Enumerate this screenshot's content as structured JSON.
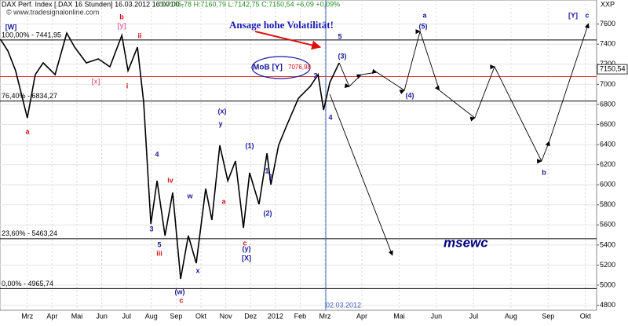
{
  "chart_data": {
    "type": "line",
    "title": "DAX Perf. Index [.DAX  16 Stunden] 16.03.2012 16:00:00 -",
    "subtitle": "O:7145,78 H:7160,79 L:7142,75 C:7150,54 +6,09 +0,09%",
    "source": "© www.tradesignalonline.com",
    "y_axis_label": "XXP",
    "xlim": [
      -1.1,
      19.3
    ],
    "ylim": [
      4750,
      7840
    ],
    "yticks": [
      4800,
      5000,
      5200,
      5400,
      5600,
      5800,
      6000,
      6200,
      6400,
      6600,
      6800,
      7000,
      7200,
      7400,
      7600
    ],
    "xticks": [
      {
        "value": 0,
        "label": "Mrz"
      },
      {
        "value": 1,
        "label": "Apr"
      },
      {
        "value": 2,
        "label": "Mai"
      },
      {
        "value": 3,
        "label": "Jun"
      },
      {
        "value": 4,
        "label": "Jul"
      },
      {
        "value": 5,
        "label": "Aug"
      },
      {
        "value": 6,
        "label": "Sep"
      },
      {
        "value": 7,
        "label": "Okt"
      },
      {
        "value": 8,
        "label": "Nov"
      },
      {
        "value": 9,
        "label": "Dez"
      },
      {
        "value": 10,
        "label": "2012"
      },
      {
        "value": 11,
        "label": "Feb"
      },
      {
        "value": 12,
        "label": "Mrz"
      },
      {
        "value": 13,
        "label": "Apr"
      },
      {
        "value": 14,
        "label": "Mai"
      },
      {
        "value": 15,
        "label": "Jun"
      },
      {
        "value": 16,
        "label": "Jul"
      },
      {
        "value": 17,
        "label": "Aug"
      },
      {
        "value": 18,
        "label": "Sep"
      },
      {
        "value": 19,
        "label": "Okt"
      }
    ],
    "grid": true,
    "series": [
      {
        "color": "#000000",
        "x": [
          -1.08,
          -0.78,
          -0.47,
          0,
          0.32,
          0.64,
          1.12,
          1.59,
          1.91,
          2.38,
          2.86,
          3.33,
          3.81,
          4.06,
          4.44,
          4.69,
          4.98,
          5.23,
          5.55,
          5.86,
          6.18,
          6.49,
          6.81,
          7.19,
          7.44,
          7.76,
          8.08,
          8.39,
          8.71,
          8.96,
          9.34,
          9.66,
          9.82,
          10.13,
          10.45,
          10.93,
          11.4,
          11.72,
          11.94,
          12.14,
          12.39
        ],
        "values": [
          7449,
          7332,
          7136,
          6666,
          7097,
          7214,
          7097,
          7511,
          7370,
          7214,
          7253,
          7175,
          7488,
          7136,
          7370,
          6823,
          5610,
          6040,
          5493,
          5923,
          5063,
          5493,
          5219,
          5962,
          5650,
          6393,
          6040,
          6236,
          5571,
          6119,
          5806,
          6314,
          6001,
          6393,
          6588,
          6862,
          6979,
          7097,
          6745,
          7019,
          7214
        ]
      },
      {
        "color": "#000000",
        "x": [
          12.39,
          12.66,
          12.98,
          13.4,
          14.14,
          14.56,
          15.08,
          16.03,
          16.56,
          17.82,
          18.03,
          19.08
        ],
        "values": [
          7214,
          6979,
          7097,
          7120,
          6940,
          7527,
          6940,
          6666,
          7175,
          6236,
          6432,
          7605
        ]
      },
      {
        "color": "#000000",
        "x": [
          12.14,
          13.82
        ],
        "values": [
          6901,
          5297
        ]
      }
    ],
    "levels": [
      {
        "value": 7441.95,
        "label": "100,00% - 7441,95"
      },
      {
        "value": 6834.27,
        "label": "76,40% - 6834,27"
      },
      {
        "value": 5463.24,
        "label": "23,60% - 5463,24"
      },
      {
        "value": 4965.74,
        "label": "0,00% - 4965,74"
      }
    ],
    "mob": {
      "label": "MoB [Y]",
      "value": 7076.98,
      "value_label": "7076,98"
    },
    "last_price": {
      "value": 7150.54,
      "label": "7150,54"
    },
    "marker": {
      "x": 12.03,
      "label": "02.03.2012"
    },
    "annotations": [
      "Ansage hohe Volatilität!",
      "msewc"
    ],
    "wave_labels": [
      {
        "text": "[W]",
        "color": "#1a1a9c"
      },
      {
        "text": "b",
        "color": "#d01010"
      },
      {
        "text": "[y]",
        "color": "#e070a0"
      },
      {
        "text": "ii",
        "color": "#d01010"
      },
      {
        "text": "a",
        "color": "#d01010"
      },
      {
        "text": "i",
        "color": "#d01010"
      },
      {
        "text": "[x]",
        "color": "#e070a0"
      },
      {
        "text": "iv",
        "color": "#d01010"
      },
      {
        "text": "iii",
        "color": "#d01010"
      },
      {
        "text": "5",
        "color": "#1a1a9c"
      },
      {
        "text": "3",
        "color": "#1a1a9c"
      },
      {
        "text": "4",
        "color": "#1a1a9c"
      },
      {
        "text": "(w)",
        "color": "#1a1a9c"
      },
      {
        "text": "c",
        "color": "#d01010"
      },
      {
        "text": "w",
        "color": "#1a1a9c"
      },
      {
        "text": "x",
        "color": "#1a1a9c"
      },
      {
        "text": "(x)",
        "color": "#1a1a9c"
      },
      {
        "text": "y",
        "color": "#1a1a9c"
      },
      {
        "text": "a",
        "color": "#d01010"
      },
      {
        "text": "c",
        "color": "#d01010"
      },
      {
        "text": "(y)",
        "color": "#1a1a9c"
      },
      {
        "text": "[X]",
        "color": "#1a1a9c"
      },
      {
        "text": "(1)",
        "color": "#1a1a9c"
      },
      {
        "text": "(2)",
        "color": "#1a1a9c"
      },
      {
        "text": "1",
        "color": "#1a1a9c"
      },
      {
        "text": "2",
        "color": "#1a1a9c"
      },
      {
        "text": "3",
        "color": "#1a1a9c"
      },
      {
        "text": "4",
        "color": "#1a1a9c"
      },
      {
        "text": "5",
        "color": "#1a1a9c"
      },
      {
        "text": "(3)",
        "color": "#1a1a9c"
      },
      {
        "text": "a",
        "color": "#1a1a9c"
      },
      {
        "text": "(5)",
        "color": "#1a1a9c"
      },
      {
        "text": "(4)",
        "color": "#1a1a9c"
      },
      {
        "text": "b",
        "color": "#1a1a9c"
      },
      {
        "text": "[Y]",
        "color": "#1a1a9c"
      },
      {
        "text": "c",
        "color": "#1a1a9c"
      }
    ]
  }
}
